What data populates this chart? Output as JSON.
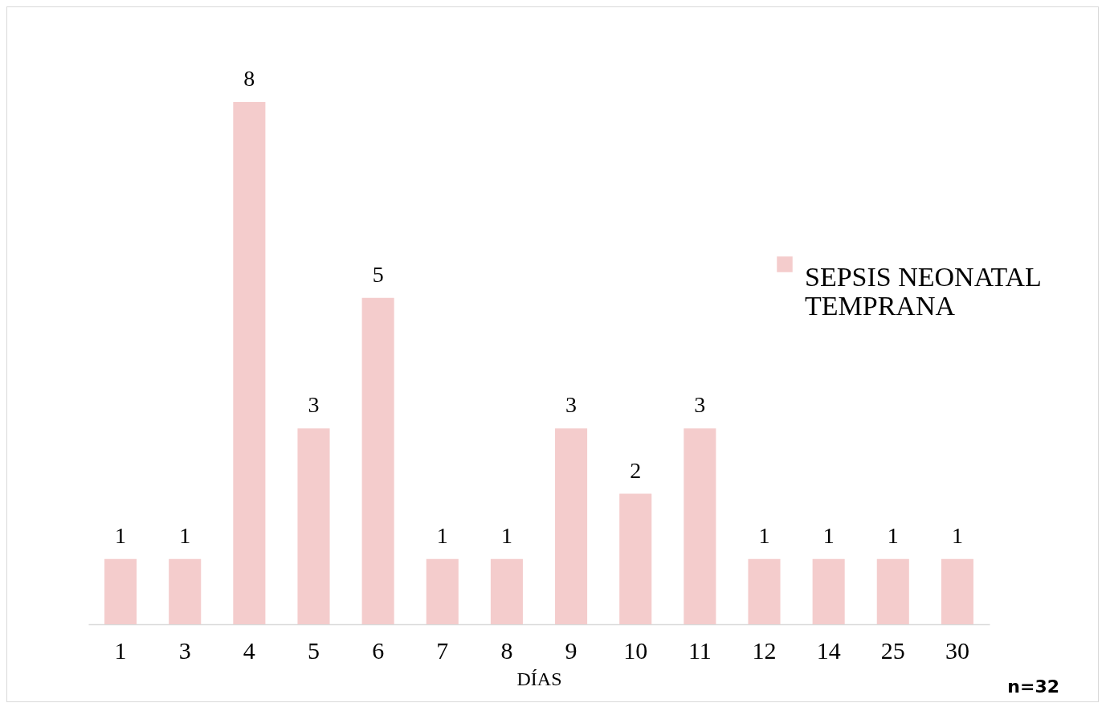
{
  "chart_data": {
    "type": "bar",
    "xlabel": "DÍAS",
    "categories": [
      "1",
      "3",
      "4",
      "5",
      "6",
      "7",
      "8",
      "9",
      "10",
      "11",
      "12",
      "14",
      "25",
      "30"
    ],
    "series": [
      {
        "name": "SEPSIS NEONATAL TEMPRANA",
        "color": "#f4cccc",
        "values": [
          1,
          1,
          8,
          3,
          5,
          1,
          1,
          3,
          2,
          3,
          1,
          1,
          1,
          1
        ]
      }
    ],
    "data_labels": true,
    "legend": "right",
    "grid": false,
    "annotations": [
      "n=32"
    ]
  }
}
